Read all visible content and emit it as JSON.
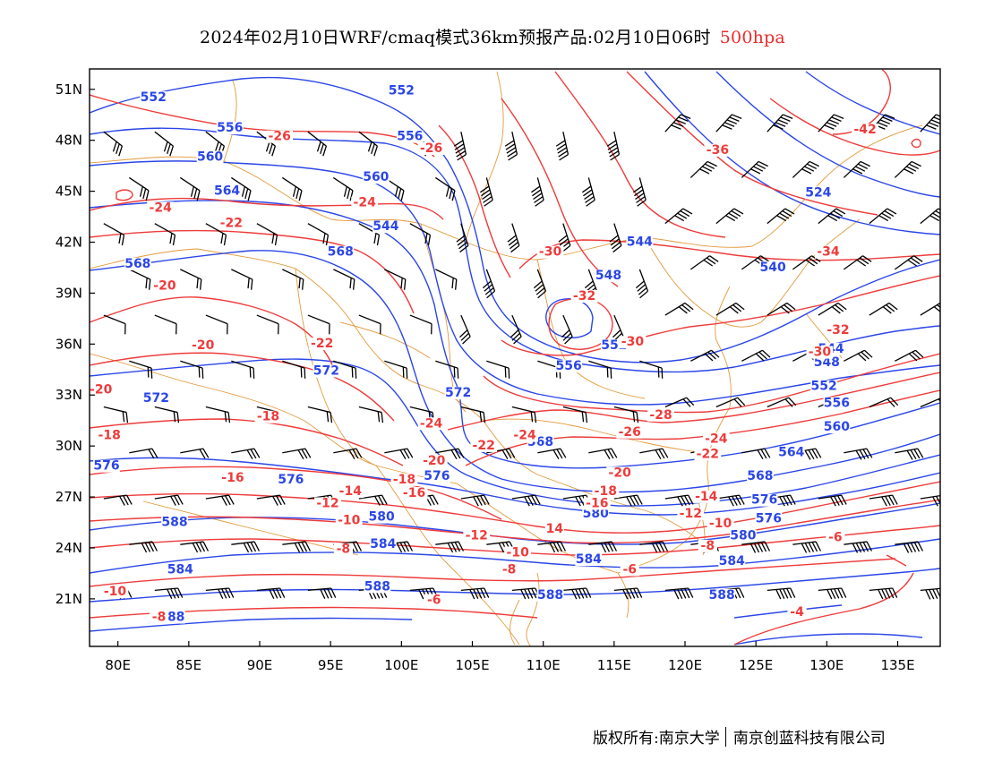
{
  "title": {
    "prefix": "2024年02月10日WRF/cmaq模式36km预报产品:02月10日06时",
    "level": "500hpa"
  },
  "credit": {
    "left": "版权所有:南京大学",
    "right": "南京创蓝科技有限公司"
  },
  "axes": {
    "lat_ticks": [
      "51N",
      "48N",
      "45N",
      "42N",
      "39N",
      "36N",
      "33N",
      "30N",
      "27N",
      "24N",
      "21N"
    ],
    "lon_ticks": [
      "80E",
      "85E",
      "90E",
      "95E",
      "100E",
      "105E",
      "110E",
      "115E",
      "120E",
      "125E",
      "130E",
      "135E"
    ]
  },
  "colors": {
    "height": "#2b46e8",
    "temperature": "#ee3b3b",
    "border": "#e39a3c",
    "barb": "#000000"
  },
  "height_labels": [
    {
      "text": "552",
      "lon": 82.5,
      "lat": 50.3
    },
    {
      "text": "552",
      "lon": 100.0,
      "lat": 50.7
    },
    {
      "text": "556",
      "lon": 87.9,
      "lat": 48.5
    },
    {
      "text": "556",
      "lon": 100.6,
      "lat": 48.0
    },
    {
      "text": "560",
      "lon": 86.5,
      "lat": 46.8
    },
    {
      "text": "560",
      "lon": 98.2,
      "lat": 45.6
    },
    {
      "text": "564",
      "lon": 87.7,
      "lat": 44.8
    },
    {
      "text": "544",
      "lon": 98.9,
      "lat": 42.7
    },
    {
      "text": "544",
      "lon": 116.8,
      "lat": 41.8
    },
    {
      "text": "524",
      "lon": 129.4,
      "lat": 44.7
    },
    {
      "text": "540",
      "lon": 126.2,
      "lat": 40.3
    },
    {
      "text": "548",
      "lon": 114.6,
      "lat": 39.8
    },
    {
      "text": "568",
      "lon": 81.4,
      "lat": 40.5
    },
    {
      "text": "568",
      "lon": 95.7,
      "lat": 41.2
    },
    {
      "text": "552",
      "lon": 115.0,
      "lat": 35.7
    },
    {
      "text": "556",
      "lon": 111.8,
      "lat": 34.5
    },
    {
      "text": "544",
      "lon": 130.3,
      "lat": 35.5
    },
    {
      "text": "548",
      "lon": 130.0,
      "lat": 34.7
    },
    {
      "text": "552",
      "lon": 129.8,
      "lat": 33.3
    },
    {
      "text": "556",
      "lon": 130.7,
      "lat": 32.3
    },
    {
      "text": "560",
      "lon": 130.7,
      "lat": 30.9
    },
    {
      "text": "564",
      "lon": 127.5,
      "lat": 29.4
    },
    {
      "text": "568",
      "lon": 125.3,
      "lat": 28.0
    },
    {
      "text": "572",
      "lon": 94.7,
      "lat": 34.2
    },
    {
      "text": "572",
      "lon": 82.7,
      "lat": 32.6
    },
    {
      "text": "572",
      "lon": 104.0,
      "lat": 32.9
    },
    {
      "text": "568",
      "lon": 109.8,
      "lat": 30.0
    },
    {
      "text": "576",
      "lon": 79.2,
      "lat": 28.6
    },
    {
      "text": "576",
      "lon": 92.2,
      "lat": 27.8
    },
    {
      "text": "576",
      "lon": 102.5,
      "lat": 28.0
    },
    {
      "text": "576",
      "lon": 125.6,
      "lat": 26.6
    },
    {
      "text": "576",
      "lon": 125.9,
      "lat": 25.5
    },
    {
      "text": "580",
      "lon": 98.6,
      "lat": 25.6
    },
    {
      "text": "580",
      "lon": 113.7,
      "lat": 25.8
    },
    {
      "text": "580",
      "lon": 124.1,
      "lat": 24.5
    },
    {
      "text": "584",
      "lon": 84.4,
      "lat": 22.5
    },
    {
      "text": "584",
      "lon": 98.7,
      "lat": 24.0
    },
    {
      "text": "584",
      "lon": 113.2,
      "lat": 23.1
    },
    {
      "text": "584",
      "lon": 123.3,
      "lat": 23.0
    },
    {
      "text": "588",
      "lon": 84.0,
      "lat": 25.3
    },
    {
      "text": "588",
      "lon": 98.3,
      "lat": 21.5
    },
    {
      "text": "588",
      "lon": 110.5,
      "lat": 21.0
    },
    {
      "text": "588",
      "lon": 122.6,
      "lat": 21.0
    },
    {
      "text": "588",
      "lon": 83.8,
      "lat": 19.7
    }
  ],
  "temp_labels": [
    {
      "text": "-26",
      "lon": 91.4,
      "lat": 48.0
    },
    {
      "text": "-26",
      "lon": 102.1,
      "lat": 47.3
    },
    {
      "text": "-36",
      "lon": 122.3,
      "lat": 47.2
    },
    {
      "text": "-42",
      "lon": 132.7,
      "lat": 48.4
    },
    {
      "text": "-24",
      "lon": 83.0,
      "lat": 43.8
    },
    {
      "text": "-24",
      "lon": 97.4,
      "lat": 44.1
    },
    {
      "text": "-22",
      "lon": 88.0,
      "lat": 42.9
    },
    {
      "text": "-30",
      "lon": 110.5,
      "lat": 41.2
    },
    {
      "text": "-34",
      "lon": 130.1,
      "lat": 41.2
    },
    {
      "text": "-20",
      "lon": 83.3,
      "lat": 39.2
    },
    {
      "text": "-32",
      "lon": 112.9,
      "lat": 38.6
    },
    {
      "text": "-30",
      "lon": 116.3,
      "lat": 35.9
    },
    {
      "text": "-32",
      "lon": 130.8,
      "lat": 36.6
    },
    {
      "text": "-30",
      "lon": 129.5,
      "lat": 35.3
    },
    {
      "text": "-20",
      "lon": 86.0,
      "lat": 35.7
    },
    {
      "text": "-22",
      "lon": 94.4,
      "lat": 35.8
    },
    {
      "text": "-20",
      "lon": 78.8,
      "lat": 33.1
    },
    {
      "text": "-18",
      "lon": 90.6,
      "lat": 31.5
    },
    {
      "text": "-18",
      "lon": 79.4,
      "lat": 30.4
    },
    {
      "text": "-24",
      "lon": 102.1,
      "lat": 31.1
    },
    {
      "text": "-28",
      "lon": 118.3,
      "lat": 31.6
    },
    {
      "text": "-26",
      "lon": 116.1,
      "lat": 30.6
    },
    {
      "text": "-24",
      "lon": 108.7,
      "lat": 30.4
    },
    {
      "text": "-22",
      "lon": 105.8,
      "lat": 29.8
    },
    {
      "text": "-24",
      "lon": 122.2,
      "lat": 30.2
    },
    {
      "text": "-22",
      "lon": 121.6,
      "lat": 29.3
    },
    {
      "text": "-20",
      "lon": 102.3,
      "lat": 28.9
    },
    {
      "text": "-20",
      "lon": 115.4,
      "lat": 28.2
    },
    {
      "text": "-16",
      "lon": 88.1,
      "lat": 27.9
    },
    {
      "text": "-18",
      "lon": 100.2,
      "lat": 27.8
    },
    {
      "text": "-14",
      "lon": 96.4,
      "lat": 27.1
    },
    {
      "text": "-16",
      "lon": 100.9,
      "lat": 27.0
    },
    {
      "text": "-18",
      "lon": 114.4,
      "lat": 27.1
    },
    {
      "text": "-16",
      "lon": 113.8,
      "lat": 26.4
    },
    {
      "text": "-14",
      "lon": 121.5,
      "lat": 26.8
    },
    {
      "text": "-12",
      "lon": 94.8,
      "lat": 26.4
    },
    {
      "text": "-12",
      "lon": 120.4,
      "lat": 25.8
    },
    {
      "text": "-10",
      "lon": 96.3,
      "lat": 25.4
    },
    {
      "text": "-10",
      "lon": 122.5,
      "lat": 25.2
    },
    {
      "text": "14",
      "lon": 110.8,
      "lat": 24.9
    },
    {
      "text": "-12",
      "lon": 105.3,
      "lat": 24.5
    },
    {
      "text": "-8",
      "lon": 95.9,
      "lat": 23.7
    },
    {
      "text": "-8",
      "lon": 121.6,
      "lat": 23.9
    },
    {
      "text": "-10",
      "lon": 108.2,
      "lat": 23.5
    },
    {
      "text": "-6",
      "lon": 130.6,
      "lat": 24.4
    },
    {
      "text": "-8",
      "lon": 107.6,
      "lat": 22.5
    },
    {
      "text": "-6",
      "lon": 116.1,
      "lat": 22.5
    },
    {
      "text": "-10",
      "lon": 79.8,
      "lat": 21.2
    },
    {
      "text": "-6",
      "lon": 102.3,
      "lat": 20.7
    },
    {
      "text": "-8",
      "lon": 82.9,
      "lat": 19.7
    },
    {
      "text": "-4",
      "lon": 127.9,
      "lat": 20.0
    }
  ]
}
